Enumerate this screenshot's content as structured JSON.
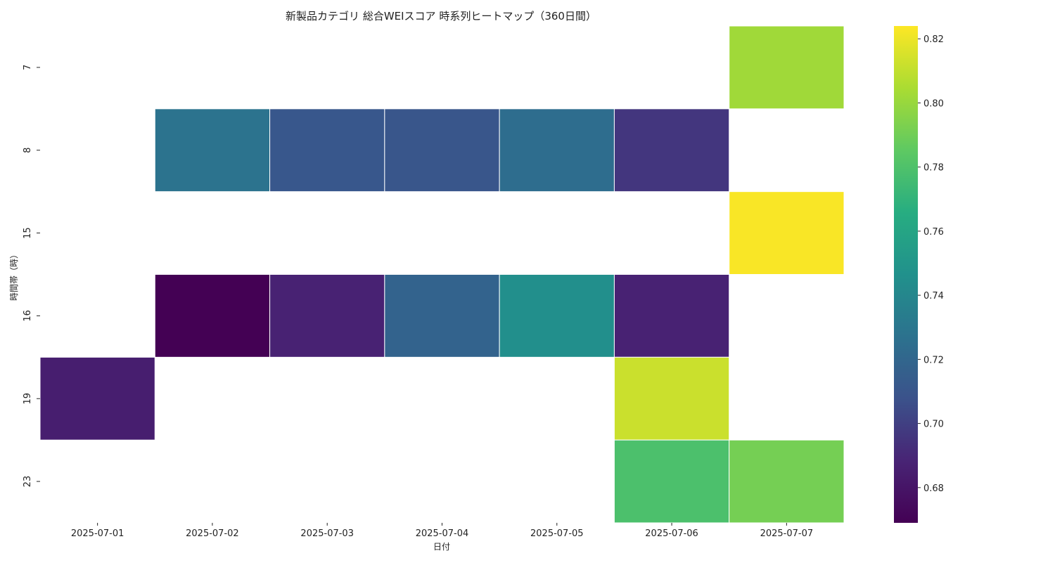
{
  "chart_data": {
    "type": "heatmap",
    "title": "新製品カテゴリ 総合WEIスコア 時系列ヒートマップ（360日間）",
    "xlabel": "日付",
    "ylabel": "時間帯（時）",
    "x_categories": [
      "2025-07-01",
      "2025-07-02",
      "2025-07-03",
      "2025-07-04",
      "2025-07-05",
      "2025-07-06",
      "2025-07-07"
    ],
    "y_categories": [
      "7",
      "8",
      "15",
      "16",
      "19",
      "23"
    ],
    "values": [
      [
        null,
        null,
        null,
        null,
        null,
        null,
        0.802
      ],
      [
        null,
        0.728,
        0.711,
        0.71,
        0.724,
        0.696,
        null
      ],
      [
        null,
        null,
        null,
        null,
        null,
        null,
        0.823
      ],
      [
        null,
        0.669,
        0.687,
        0.718,
        0.745,
        0.687,
        null
      ],
      [
        0.685,
        null,
        null,
        null,
        null,
        0.812,
        null
      ],
      [
        null,
        null,
        null,
        null,
        null,
        0.779,
        0.791
      ]
    ],
    "colorscale": "viridis",
    "colorbar": {
      "min": 0.669,
      "max": 0.824,
      "ticks": [
        "0.68",
        "0.70",
        "0.72",
        "0.74",
        "0.76",
        "0.78",
        "0.80",
        "0.82"
      ]
    },
    "missing_color": "#ffffff"
  }
}
